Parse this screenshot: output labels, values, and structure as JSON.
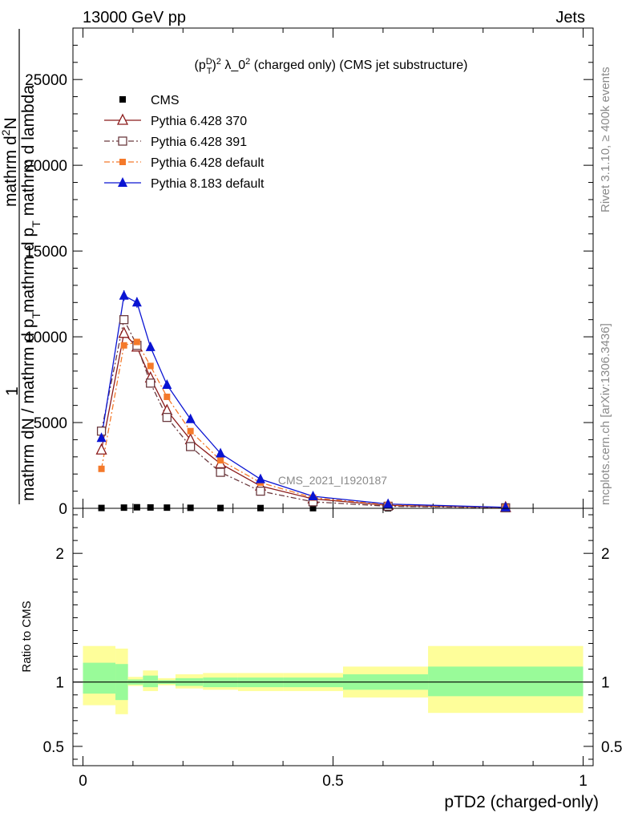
{
  "header": {
    "left": "13000 GeV pp",
    "right": "Jets"
  },
  "side_labels": {
    "rivet": "Rivet 3.1.10, ≥ 400k events",
    "mcplots": "mcplots.cern.ch [arXiv:1306.3436]"
  },
  "watermark": "CMS_2021_I1920187",
  "main": {
    "title_prefix": "(p",
    "title_sup": "D",
    "title_sub": "T",
    "title_after": ")",
    "title_sup2": "2",
    "title_mid": " λ_0",
    "title_sup3": "2",
    "title_rest": " (charged only) (CMS jet substructure)",
    "ylabel_parts": {
      "numerator1": "1",
      "denominator1": "mathrm dN / mathrm d p",
      "denominator1_sub": "T",
      "numerator2": "mathrm d",
      "numerator2_sup": "2",
      "numerator2_rest": "N",
      "denominator2": "mathrm d p",
      "denominator2_sub": "T",
      "denominator2_rest": " mathrm d lambda"
    }
  },
  "ratio": {
    "ylabel": "Ratio to CMS"
  },
  "xlabel": "pTD2 (charged-only)",
  "colors": {
    "cms": "#000000",
    "p370": "#8b1a1a",
    "p391": "#6b3a3f",
    "p6def": "#f4792a",
    "p8def": "#0a14d2",
    "band_inner": "#99fb99",
    "band_outer": "#fefe9a"
  },
  "chart_data": {
    "type": "line",
    "xlim": [
      -0.02,
      1.02
    ],
    "ylim": [
      0,
      28000
    ],
    "x_ticks": [
      0,
      0.5,
      1
    ],
    "x_tick_labels": [
      "0",
      "0.5",
      "1"
    ],
    "y_ticks": [
      0,
      5000,
      10000,
      15000,
      20000,
      25000
    ],
    "y_tick_labels": [
      "0",
      "5000",
      "10000",
      "15000",
      "20000",
      "25000"
    ],
    "x": [
      0.037,
      0.082,
      0.108,
      0.135,
      0.168,
      0.215,
      0.275,
      0.355,
      0.46,
      0.61,
      0.845
    ],
    "bin_edges": [
      0.0,
      0.065,
      0.09,
      0.12,
      0.15,
      0.185,
      0.24,
      0.31,
      0.4,
      0.52,
      0.69,
      1.0
    ],
    "series": [
      {
        "name": "CMS",
        "key": "cms",
        "marker": "square",
        "values": [
          20,
          40,
          60,
          50,
          40,
          30,
          20,
          15,
          10,
          5,
          3
        ]
      },
      {
        "name": "Pythia 6.428 370",
        "key": "p370",
        "marker": "triangle-open",
        "line": "solid",
        "values": [
          3400,
          10200,
          9400,
          7600,
          5700,
          4000,
          2600,
          1300,
          550,
          170,
          45
        ]
      },
      {
        "name": "Pythia 6.428 391",
        "key": "p391",
        "marker": "square-open",
        "line": "dashdot",
        "values": [
          4500,
          11000,
          9500,
          7300,
          5300,
          3600,
          2100,
          1000,
          380,
          120,
          30
        ]
      },
      {
        "name": "Pythia 6.428 default",
        "key": "p6def",
        "marker": "square-small",
        "line": "dashdot",
        "values": [
          2300,
          9500,
          9700,
          8300,
          6500,
          4500,
          2800,
          1500,
          620,
          200,
          50
        ]
      },
      {
        "name": "Pythia 8.183 default",
        "key": "p8def",
        "marker": "triangle",
        "line": "solid",
        "values": [
          4100,
          12400,
          12000,
          9400,
          7200,
          5200,
          3200,
          1700,
          700,
          250,
          60
        ]
      }
    ],
    "ratio": {
      "ylim": [
        0.35,
        2.35
      ],
      "y_ticks": [
        0.5,
        1,
        2
      ],
      "y_tick_labels": [
        "0.5",
        "1",
        "2"
      ],
      "reference": 1,
      "bands": [
        {
          "x0": 0.0,
          "x1": 0.065,
          "inner": [
            0.91,
            1.15
          ],
          "outer": [
            0.82,
            1.28
          ]
        },
        {
          "x0": 0.065,
          "x1": 0.09,
          "inner": [
            0.86,
            1.14
          ],
          "outer": [
            0.75,
            1.26
          ]
        },
        {
          "x0": 0.09,
          "x1": 0.12,
          "inner": [
            0.98,
            1.02
          ],
          "outer": [
            0.97,
            1.04
          ]
        },
        {
          "x0": 0.12,
          "x1": 0.15,
          "inner": [
            0.96,
            1.05
          ],
          "outer": [
            0.93,
            1.09
          ]
        },
        {
          "x0": 0.15,
          "x1": 0.185,
          "inner": [
            0.985,
            1.015
          ],
          "outer": [
            0.975,
            1.03
          ]
        },
        {
          "x0": 0.185,
          "x1": 0.24,
          "inner": [
            0.97,
            1.03
          ],
          "outer": [
            0.95,
            1.06
          ]
        },
        {
          "x0": 0.24,
          "x1": 0.31,
          "inner": [
            0.96,
            1.035
          ],
          "outer": [
            0.94,
            1.07
          ]
        },
        {
          "x0": 0.31,
          "x1": 0.4,
          "inner": [
            0.96,
            1.035
          ],
          "outer": [
            0.93,
            1.07
          ]
        },
        {
          "x0": 0.4,
          "x1": 0.52,
          "inner": [
            0.96,
            1.035
          ],
          "outer": [
            0.93,
            1.07
          ]
        },
        {
          "x0": 0.52,
          "x1": 0.69,
          "inner": [
            0.94,
            1.06
          ],
          "outer": [
            0.88,
            1.12
          ]
        },
        {
          "x0": 0.69,
          "x1": 1.0,
          "inner": [
            0.89,
            1.12
          ],
          "outer": [
            0.76,
            1.28
          ]
        }
      ]
    }
  }
}
